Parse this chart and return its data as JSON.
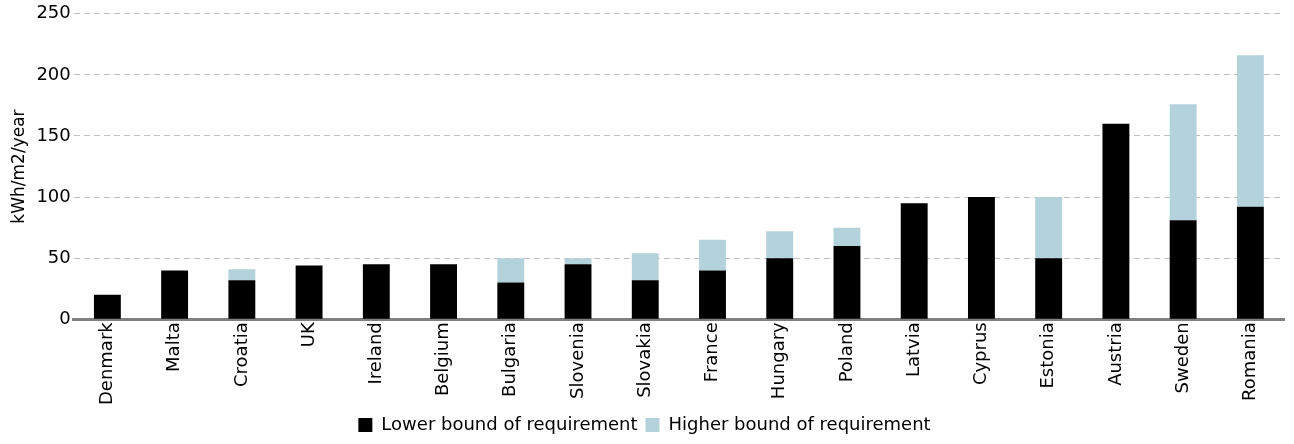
{
  "chart_data": {
    "type": "bar",
    "stacked": true,
    "ylabel": "kWh/m2/year",
    "categories": [
      "Denmark",
      "Malta",
      "Croatia",
      "UK",
      "Ireland",
      "Belgium",
      "Bulgaria",
      "Slovenia",
      "Slovakia",
      "France",
      "Hungary",
      "Poland",
      "Latvia",
      "Cyprus",
      "Estonia",
      "Austria",
      "Sweden",
      "Romania"
    ],
    "series": [
      {
        "name": "Lower bound of requirement",
        "color": "#000000",
        "values": [
          20,
          40,
          32,
          44,
          45,
          45,
          30,
          45,
          32,
          40,
          50,
          60,
          95,
          100,
          50,
          160,
          81,
          92
        ]
      },
      {
        "name": "Higher bound of requirement",
        "color": "#b4d2dc",
        "values": [
          null,
          null,
          9,
          null,
          null,
          null,
          20,
          5,
          22,
          25,
          22,
          15,
          null,
          null,
          50,
          null,
          95,
          124
        ]
      }
    ],
    "ylim": [
      0,
      250
    ],
    "yticks": [
      0,
      50,
      100,
      150,
      200,
      250
    ],
    "grid": "y",
    "legend": "bottom"
  }
}
